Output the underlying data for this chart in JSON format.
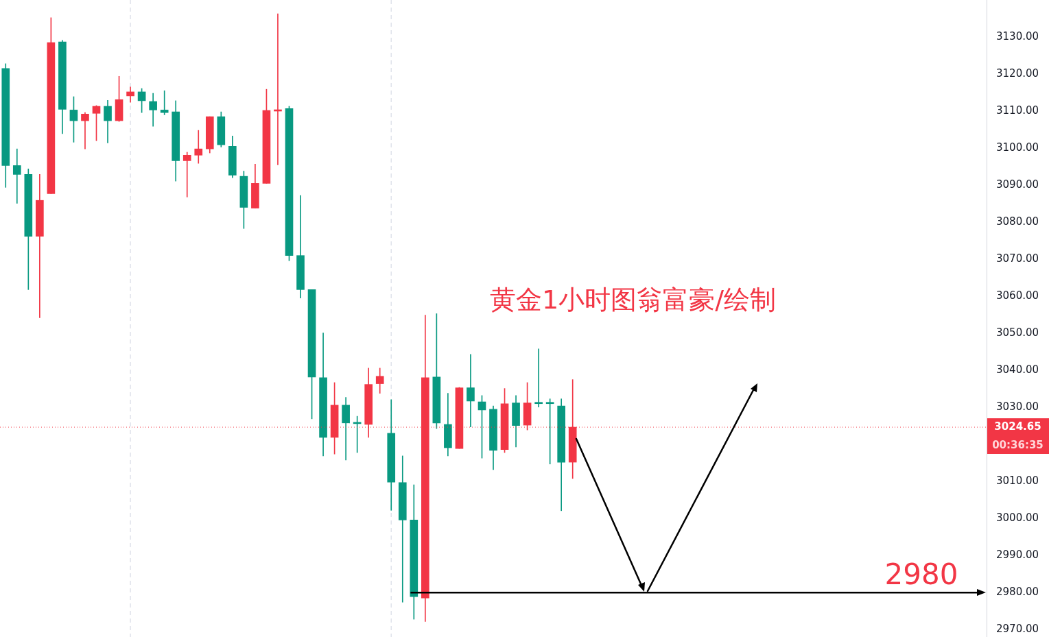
{
  "chart_data": {
    "type": "candlestick",
    "title": "黄金1小时图翁富豪/绘制",
    "categories": [
      null,
      null,
      null,
      null,
      null,
      null,
      null,
      null,
      null,
      null,
      null,
      null,
      null,
      null,
      null,
      null,
      null,
      null,
      null,
      null,
      null,
      null,
      null,
      null,
      null,
      null,
      null,
      null,
      null,
      null,
      null,
      null,
      null,
      null,
      null,
      null,
      null,
      null,
      null,
      null,
      null,
      null,
      null,
      null,
      null,
      null,
      null,
      null,
      null,
      null,
      null,
      null,
      null,
      null,
      null,
      null,
      null,
      null,
      null,
      null,
      null,
      null,
      null,
      null,
      null,
      null,
      null,
      null,
      null,
      null,
      null,
      null,
      null,
      null,
      null,
      null,
      null,
      null,
      null,
      null,
      null,
      null,
      null,
      null,
      null,
      null,
      null
    ],
    "ohlc": [
      [
        3121.5,
        3122.8,
        3089.4,
        3095.3
      ],
      [
        3095.3,
        3099.8,
        3085.1,
        3092.9
      ],
      [
        3092.9,
        3094.4,
        3061.8,
        3076.2
      ],
      [
        3076.2,
        3092.9,
        3054.2,
        3085.9
      ],
      [
        3087.7,
        3135.2,
        3087.7,
        3128.5
      ],
      [
        3128.7,
        3129.1,
        3103.9,
        3110.5
      ],
      [
        3110.3,
        3113.9,
        3101.6,
        3107.4
      ],
      [
        3107.4,
        3109.6,
        3099.8,
        3109.2
      ],
      [
        3109.4,
        3111.5,
        3102.0,
        3111.3
      ],
      [
        3111.3,
        3112.9,
        3101.4,
        3107.4
      ],
      [
        3107.4,
        3119.4,
        3107.2,
        3113.1
      ],
      [
        3114.1,
        3116.5,
        3112.4,
        3115.2
      ],
      [
        3115.2,
        3116.1,
        3109.6,
        3112.8
      ],
      [
        3112.6,
        3114.8,
        3105.9,
        3110.3
      ],
      [
        3110.3,
        3115.5,
        3109.0,
        3109.6
      ],
      [
        3109.8,
        3112.8,
        3091.1,
        3096.6
      ],
      [
        3096.6,
        3098.9,
        3086.8,
        3098.1
      ],
      [
        3098.1,
        3104.8,
        3095.9,
        3099.8
      ],
      [
        3099.8,
        3108.5,
        3098.7,
        3108.5
      ],
      [
        3108.5,
        3109.8,
        3100.3,
        3100.9
      ],
      [
        3100.5,
        3103.3,
        3092.0,
        3092.7
      ],
      [
        3092.4,
        3093.8,
        3078.3,
        3084.0
      ],
      [
        3083.8,
        3095.7,
        3083.8,
        3090.5
      ],
      [
        3090.5,
        3115.9,
        3090.5,
        3110.2
      ],
      [
        3110.0,
        3136.3,
        3095.5,
        3110.0
      ],
      [
        3110.7,
        3111.3,
        3069.6,
        3071.0
      ],
      [
        3071.0,
        3087.2,
        3059.5,
        3061.8
      ],
      [
        3061.8,
        3061.8,
        3026.9,
        3038.2
      ],
      [
        3038.0,
        3050.1,
        3016.9,
        3021.9
      ],
      [
        3021.9,
        3036.7,
        3017.4,
        3030.6
      ],
      [
        3030.6,
        3032.7,
        3015.8,
        3025.8
      ],
      [
        3025.6,
        3027.6,
        3017.8,
        3025.6
      ],
      [
        3025.4,
        3040.6,
        3021.9,
        3036.2
      ],
      [
        3036.4,
        3040.6,
        3033.8,
        3038.4
      ],
      [
        3023.0,
        3032.1,
        3002.2,
        3009.8
      ],
      [
        3009.7,
        3016.9,
        2977.4,
        2999.6
      ],
      [
        2999.6,
        3009.1,
        2972.8,
        2978.9
      ],
      [
        2978.5,
        3054.9,
        2972.2,
        3038.0
      ],
      [
        3038.2,
        3055.3,
        3024.3,
        3025.8
      ],
      [
        3025.4,
        3033.8,
        3016.9,
        3019.1
      ],
      [
        3018.9,
        3035.4,
        3018.9,
        3035.3
      ],
      [
        3035.3,
        3044.3,
        3024.7,
        3031.7
      ],
      [
        3031.5,
        3033.2,
        3016.3,
        3029.3
      ],
      [
        3029.5,
        3030.4,
        3013.2,
        3018.4
      ],
      [
        3018.6,
        3035.1,
        3017.8,
        3031.0
      ],
      [
        3031.2,
        3033.2,
        3019.3,
        3025.1
      ],
      [
        3025.2,
        3036.7,
        3023.9,
        3031.2
      ],
      [
        3031.2,
        3045.8,
        3030.1,
        3031.0
      ],
      [
        3031.2,
        3032.3,
        3014.7,
        3031.0
      ],
      [
        3030.4,
        3032.3,
        3002.1,
        3015.2
      ],
      [
        3015.2,
        3037.5,
        3010.8,
        3024.65
      ],
      null,
      null,
      null,
      null,
      null,
      null,
      null,
      null,
      null,
      null,
      null,
      null,
      null,
      null,
      null,
      null,
      null,
      null,
      null,
      null,
      null,
      null,
      null,
      null,
      null,
      null,
      null,
      null,
      null,
      null,
      null,
      null,
      null,
      null,
      null,
      null
    ],
    "colors": [
      "#089981",
      "#089981",
      "#089981",
      "#f23645",
      "#f23645",
      "#089981",
      "#089981",
      "#f23645",
      "#f23645",
      "#089981",
      "#f23645",
      "#f23645",
      "#089981",
      "#089981",
      "#089981",
      "#089981",
      "#f23645",
      "#f23645",
      "#f23645",
      "#089981",
      "#089981",
      "#089981",
      "#f23645",
      "#f23645",
      "#f23645",
      "#089981",
      "#089981",
      "#089981",
      "#089981",
      "#f23645",
      "#089981",
      "#089981",
      "#f23645",
      "#f23645",
      "#089981",
      "#089981",
      "#089981",
      "#f23645",
      "#089981",
      "#089981",
      "#f23645",
      "#089981",
      "#089981",
      "#089981",
      "#f23645",
      "#089981",
      "#f23645",
      "#089981",
      "#089981",
      "#089981",
      "#f23645",
      null,
      null,
      null,
      null,
      null,
      null,
      null,
      null,
      null,
      null,
      null,
      null,
      null,
      null,
      null,
      null,
      null,
      null,
      null,
      null,
      null,
      null,
      null,
      null,
      null,
      null,
      null,
      null,
      null,
      null,
      null,
      null,
      null,
      null,
      null,
      null
    ],
    "ylim": [
      2968,
      3140
    ],
    "yticks": [
      {
        "value": 2970,
        "label": "2970.00"
      },
      {
        "value": 2980,
        "label": "2980.00"
      },
      {
        "value": 2990,
        "label": "2990.00"
      },
      {
        "value": 3000,
        "label": "3000.00"
      },
      {
        "value": 3010,
        "label": "3010.00"
      },
      {
        "value": 3030,
        "label": "3030.00"
      },
      {
        "value": 3040,
        "label": "3040.00"
      },
      {
        "value": 3050,
        "label": "3050.00"
      },
      {
        "value": 3060,
        "label": "3060.00"
      },
      {
        "value": 3070,
        "label": "3070.00"
      },
      {
        "value": 3080,
        "label": "3080.00"
      },
      {
        "value": 3090,
        "label": "3090.00"
      },
      {
        "value": 3100,
        "label": "3100.00"
      },
      {
        "value": 3110,
        "label": "3110.00"
      },
      {
        "value": 3120,
        "label": "3120.00"
      },
      {
        "value": 3130,
        "label": "3130.00"
      }
    ],
    "ref_lines": [
      {
        "axis": "y",
        "value": 3024.65,
        "label": "3024.65",
        "color": "#f23645",
        "line_style": "dotted"
      },
      {
        "axis": "y",
        "value": 2980,
        "label": "2980",
        "color": "#000000",
        "line_style": "solid"
      }
    ],
    "annotations": [
      "00:36:35"
    ],
    "grid": false,
    "legend": false
  }
}
